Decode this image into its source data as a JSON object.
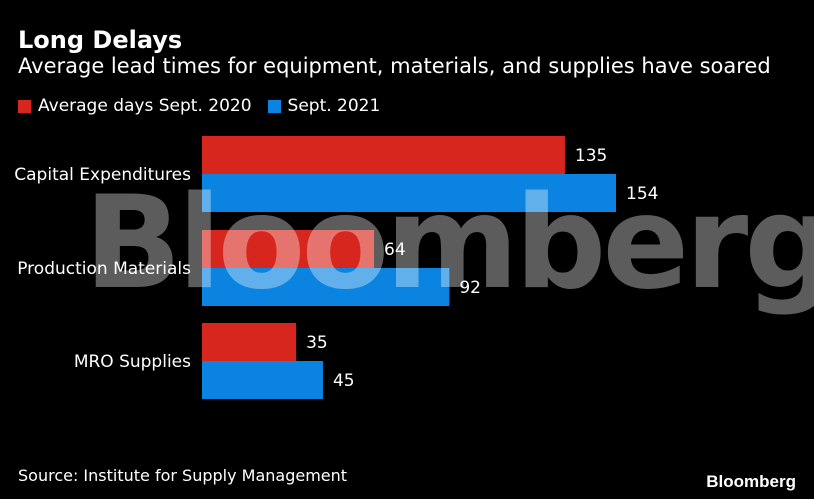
{
  "chart_data": {
    "type": "bar",
    "orientation": "horizontal",
    "title": "Long Delays",
    "subtitle": "Average lead times for equipment, materials, and supplies have soared",
    "categories": [
      "Capital Expenditures",
      "Production Materials",
      "MRO Supplies"
    ],
    "series": [
      {
        "name": "Average days Sept. 2020",
        "color": "#d7261e",
        "values": [
          135,
          64,
          35
        ]
      },
      {
        "name": "Sept. 2021",
        "color": "#0a84e0",
        "values": [
          154,
          92,
          45
        ]
      }
    ],
    "xlim": [
      0,
      154
    ],
    "grid": false,
    "legend": "top-left",
    "source": "Source: Institute for Supply Management"
  },
  "watermark": "Bloomberg",
  "brand": "Bloomberg"
}
